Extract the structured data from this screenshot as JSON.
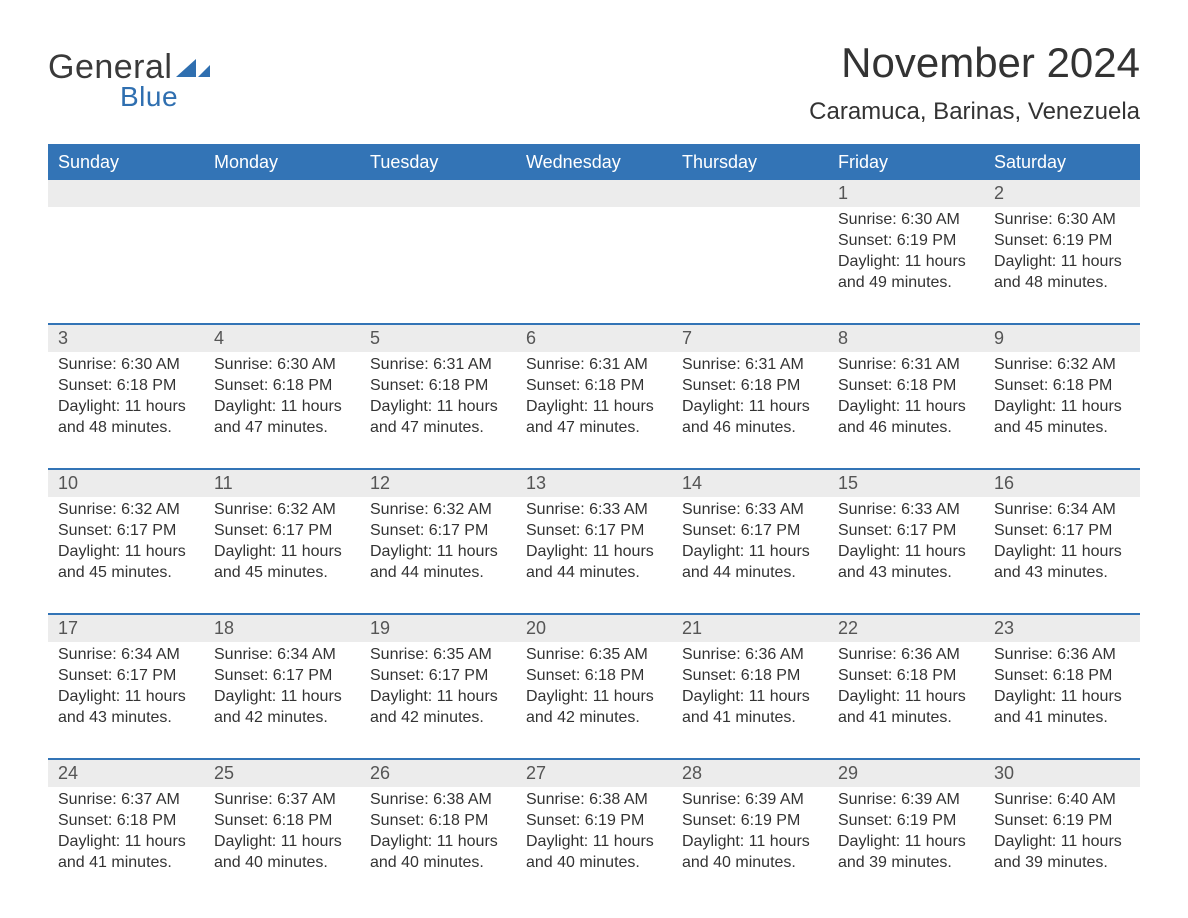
{
  "logo": {
    "text_general": "General",
    "text_blue": "Blue",
    "mark_color": "#2f6fb0"
  },
  "colors": {
    "header_bg": "#3374b6",
    "header_text": "#ffffff",
    "band_bg": "#ececec",
    "divider": "#3374b6",
    "text": "#333333",
    "daynum_text": "#555555",
    "page_bg": "#ffffff"
  },
  "typography": {
    "title_fontsize": 42,
    "location_fontsize": 24,
    "header_fontsize": 18,
    "daynum_fontsize": 18,
    "body_fontsize": 16,
    "font_family": "Arial"
  },
  "title": "November 2024",
  "location": "Caramuca, Barinas, Venezuela",
  "weekday_headers": [
    "Sunday",
    "Monday",
    "Tuesday",
    "Wednesday",
    "Thursday",
    "Friday",
    "Saturday"
  ],
  "labels": {
    "sunrise_prefix": "Sunrise: ",
    "sunset_prefix": "Sunset: ",
    "daylight_prefix": "Daylight: "
  },
  "weeks": [
    [
      null,
      null,
      null,
      null,
      null,
      {
        "day": "1",
        "sunrise": "6:30 AM",
        "sunset": "6:19 PM",
        "daylight": "11 hours and 49 minutes."
      },
      {
        "day": "2",
        "sunrise": "6:30 AM",
        "sunset": "6:19 PM",
        "daylight": "11 hours and 48 minutes."
      }
    ],
    [
      {
        "day": "3",
        "sunrise": "6:30 AM",
        "sunset": "6:18 PM",
        "daylight": "11 hours and 48 minutes."
      },
      {
        "day": "4",
        "sunrise": "6:30 AM",
        "sunset": "6:18 PM",
        "daylight": "11 hours and 47 minutes."
      },
      {
        "day": "5",
        "sunrise": "6:31 AM",
        "sunset": "6:18 PM",
        "daylight": "11 hours and 47 minutes."
      },
      {
        "day": "6",
        "sunrise": "6:31 AM",
        "sunset": "6:18 PM",
        "daylight": "11 hours and 47 minutes."
      },
      {
        "day": "7",
        "sunrise": "6:31 AM",
        "sunset": "6:18 PM",
        "daylight": "11 hours and 46 minutes."
      },
      {
        "day": "8",
        "sunrise": "6:31 AM",
        "sunset": "6:18 PM",
        "daylight": "11 hours and 46 minutes."
      },
      {
        "day": "9",
        "sunrise": "6:32 AM",
        "sunset": "6:18 PM",
        "daylight": "11 hours and 45 minutes."
      }
    ],
    [
      {
        "day": "10",
        "sunrise": "6:32 AM",
        "sunset": "6:17 PM",
        "daylight": "11 hours and 45 minutes."
      },
      {
        "day": "11",
        "sunrise": "6:32 AM",
        "sunset": "6:17 PM",
        "daylight": "11 hours and 45 minutes."
      },
      {
        "day": "12",
        "sunrise": "6:32 AM",
        "sunset": "6:17 PM",
        "daylight": "11 hours and 44 minutes."
      },
      {
        "day": "13",
        "sunrise": "6:33 AM",
        "sunset": "6:17 PM",
        "daylight": "11 hours and 44 minutes."
      },
      {
        "day": "14",
        "sunrise": "6:33 AM",
        "sunset": "6:17 PM",
        "daylight": "11 hours and 44 minutes."
      },
      {
        "day": "15",
        "sunrise": "6:33 AM",
        "sunset": "6:17 PM",
        "daylight": "11 hours and 43 minutes."
      },
      {
        "day": "16",
        "sunrise": "6:34 AM",
        "sunset": "6:17 PM",
        "daylight": "11 hours and 43 minutes."
      }
    ],
    [
      {
        "day": "17",
        "sunrise": "6:34 AM",
        "sunset": "6:17 PM",
        "daylight": "11 hours and 43 minutes."
      },
      {
        "day": "18",
        "sunrise": "6:34 AM",
        "sunset": "6:17 PM",
        "daylight": "11 hours and 42 minutes."
      },
      {
        "day": "19",
        "sunrise": "6:35 AM",
        "sunset": "6:17 PM",
        "daylight": "11 hours and 42 minutes."
      },
      {
        "day": "20",
        "sunrise": "6:35 AM",
        "sunset": "6:18 PM",
        "daylight": "11 hours and 42 minutes."
      },
      {
        "day": "21",
        "sunrise": "6:36 AM",
        "sunset": "6:18 PM",
        "daylight": "11 hours and 41 minutes."
      },
      {
        "day": "22",
        "sunrise": "6:36 AM",
        "sunset": "6:18 PM",
        "daylight": "11 hours and 41 minutes."
      },
      {
        "day": "23",
        "sunrise": "6:36 AM",
        "sunset": "6:18 PM",
        "daylight": "11 hours and 41 minutes."
      }
    ],
    [
      {
        "day": "24",
        "sunrise": "6:37 AM",
        "sunset": "6:18 PM",
        "daylight": "11 hours and 41 minutes."
      },
      {
        "day": "25",
        "sunrise": "6:37 AM",
        "sunset": "6:18 PM",
        "daylight": "11 hours and 40 minutes."
      },
      {
        "day": "26",
        "sunrise": "6:38 AM",
        "sunset": "6:18 PM",
        "daylight": "11 hours and 40 minutes."
      },
      {
        "day": "27",
        "sunrise": "6:38 AM",
        "sunset": "6:19 PM",
        "daylight": "11 hours and 40 minutes."
      },
      {
        "day": "28",
        "sunrise": "6:39 AM",
        "sunset": "6:19 PM",
        "daylight": "11 hours and 40 minutes."
      },
      {
        "day": "29",
        "sunrise": "6:39 AM",
        "sunset": "6:19 PM",
        "daylight": "11 hours and 39 minutes."
      },
      {
        "day": "30",
        "sunrise": "6:40 AM",
        "sunset": "6:19 PM",
        "daylight": "11 hours and 39 minutes."
      }
    ]
  ]
}
